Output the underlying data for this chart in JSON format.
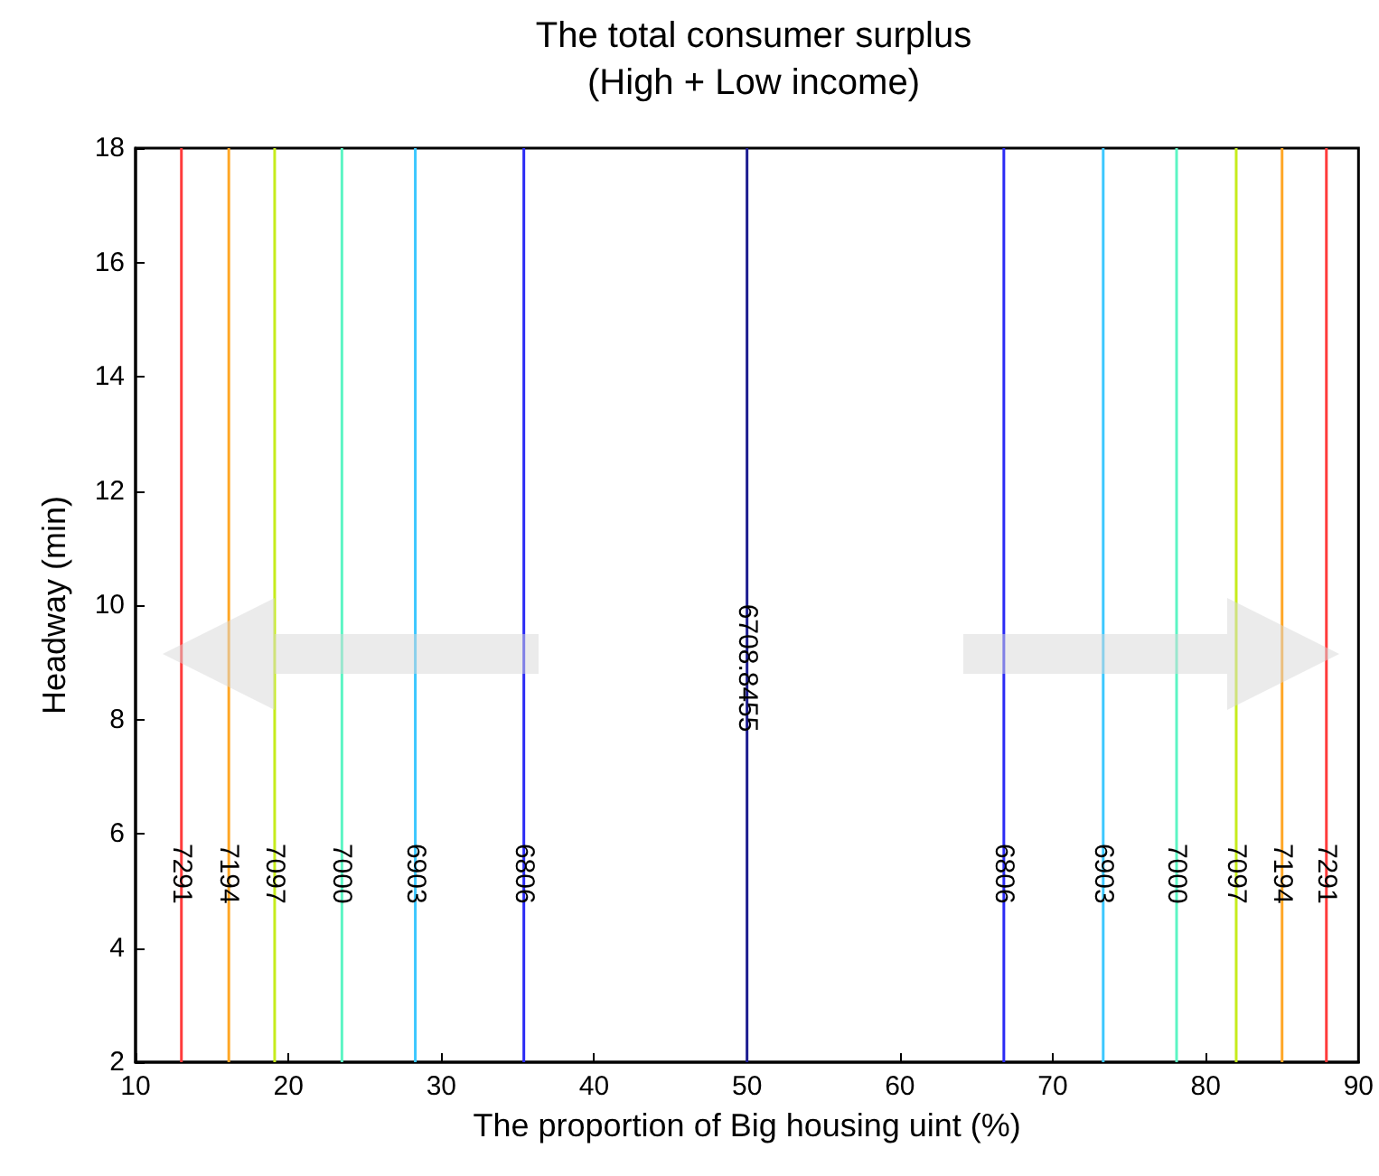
{
  "chart_data": {
    "type": "line",
    "title": "The total consumer surplus\n(High + Low income)",
    "xlabel": "The proportion of Big housing uint (%)",
    "ylabel": "Headway (min)",
    "xlim": [
      10,
      90
    ],
    "xticks": [
      10,
      20,
      30,
      40,
      50,
      60,
      70,
      80,
      90
    ],
    "ylim": [
      2,
      18
    ],
    "yticks": [
      2,
      4,
      6,
      8,
      10,
      12,
      14,
      16,
      18
    ],
    "grid": false,
    "marker": "none",
    "line_style": "solid",
    "series": [
      {
        "color": "#ff3b3b",
        "x": [
          13,
          13
        ],
        "values": [
          2,
          18
        ]
      },
      {
        "color": "#ffa726",
        "x": [
          16.1,
          16.1
        ],
        "values": [
          2,
          18
        ]
      },
      {
        "color": "#c6ec1c",
        "x": [
          19.1,
          19.1
        ],
        "values": [
          2,
          18
        ]
      },
      {
        "color": "#5cf5c4",
        "x": [
          23.5,
          23.5
        ],
        "values": [
          2,
          18
        ]
      },
      {
        "color": "#3cc8ff",
        "x": [
          28.3,
          28.3
        ],
        "values": [
          2,
          18
        ]
      },
      {
        "color": "#2b2bf5",
        "x": [
          35.4,
          35.4
        ],
        "values": [
          2,
          18
        ]
      },
      {
        "color": "#1c1c90",
        "x": [
          50,
          50
        ],
        "values": [
          2,
          18
        ]
      },
      {
        "color": "#2b2bf5",
        "x": [
          66.8,
          66.8
        ],
        "values": [
          2,
          18
        ]
      },
      {
        "color": "#3cc8ff",
        "x": [
          73.3,
          73.3
        ],
        "values": [
          2,
          18
        ]
      },
      {
        "color": "#5cf5c4",
        "x": [
          78.1,
          78.1
        ],
        "values": [
          2,
          18
        ]
      },
      {
        "color": "#c6ec1c",
        "x": [
          82,
          82
        ],
        "values": [
          2,
          18
        ]
      },
      {
        "color": "#ffa726",
        "x": [
          85,
          85
        ],
        "values": [
          2,
          18
        ]
      },
      {
        "color": "#ff3b3b",
        "x": [
          87.9,
          87.9
        ],
        "values": [
          2,
          18
        ]
      }
    ],
    "annotations": [
      {
        "text": "7291",
        "x": 13,
        "y": 5.3
      },
      {
        "text": "7194",
        "x": 16.1,
        "y": 5.3
      },
      {
        "text": "7097",
        "x": 19.1,
        "y": 5.3
      },
      {
        "text": "7000",
        "x": 23.5,
        "y": 5.3
      },
      {
        "text": "6903",
        "x": 28.3,
        "y": 5.3
      },
      {
        "text": "6806",
        "x": 35.4,
        "y": 5.3
      },
      {
        "text": "6708.8455",
        "x": 50,
        "y": 8.9
      },
      {
        "text": "6806",
        "x": 66.8,
        "y": 5.3
      },
      {
        "text": "6903",
        "x": 73.3,
        "y": 5.3
      },
      {
        "text": "7000",
        "x": 78.1,
        "y": 5.3
      },
      {
        "text": "7097",
        "x": 82,
        "y": 5.3
      },
      {
        "text": "7194",
        "x": 85,
        "y": 5.3
      },
      {
        "text": "7291",
        "x": 87.9,
        "y": 5.3
      }
    ]
  }
}
